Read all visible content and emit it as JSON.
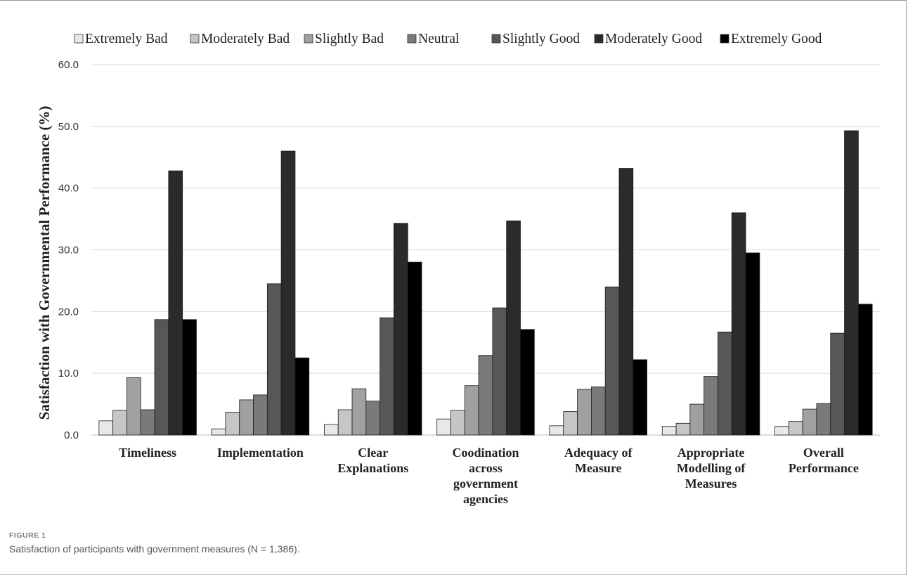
{
  "figure": {
    "label": "FIGURE 1",
    "caption": "Satisfaction of participants with government measures (N = 1,386)."
  },
  "chart_data": {
    "type": "bar",
    "title": "",
    "xlabel": "",
    "ylabel": "Satisfaction with Governmental Performance (%)",
    "ylim": [
      0,
      60
    ],
    "yticks": [
      "0.0",
      "10.0",
      "20.0",
      "30.0",
      "40.0",
      "50.0",
      "60.0"
    ],
    "grid": true,
    "legend_position": "top",
    "categories": [
      [
        "Timeliness"
      ],
      [
        "Implementation"
      ],
      [
        "Clear",
        "Explanations"
      ],
      [
        "Coodination",
        "across",
        "government",
        "agencies"
      ],
      [
        "Adequacy of",
        "Measure"
      ],
      [
        "Appropriate",
        "Modelling of",
        "Measures"
      ],
      [
        "Overall",
        "Performance"
      ]
    ],
    "series": [
      {
        "name": "Extremely Bad",
        "color": "#e8e8e8",
        "values": [
          2.3,
          1.0,
          1.7,
          2.6,
          1.5,
          1.4,
          1.4
        ]
      },
      {
        "name": "Moderately Bad",
        "color": "#c6c6c6",
        "values": [
          4.0,
          3.7,
          4.1,
          4.0,
          3.8,
          1.9,
          2.2
        ]
      },
      {
        "name": "Slightly Bad",
        "color": "#a0a0a0",
        "values": [
          9.3,
          5.7,
          7.5,
          8.0,
          7.4,
          5.0,
          4.2
        ]
      },
      {
        "name": "Neutral",
        "color": "#7a7a7a",
        "values": [
          4.1,
          6.5,
          5.5,
          12.9,
          7.8,
          9.5,
          5.1
        ]
      },
      {
        "name": "Slightly Good",
        "color": "#575757",
        "values": [
          18.7,
          24.5,
          19.0,
          20.6,
          24.0,
          16.7,
          16.5
        ]
      },
      {
        "name": "Moderately Good",
        "color": "#2b2b2b",
        "values": [
          42.8,
          46.0,
          34.3,
          34.7,
          43.2,
          36.0,
          49.3
        ]
      },
      {
        "name": "Extremely Good",
        "color": "#000000",
        "values": [
          18.7,
          12.5,
          28.0,
          17.1,
          12.2,
          29.5,
          21.2
        ]
      }
    ]
  }
}
